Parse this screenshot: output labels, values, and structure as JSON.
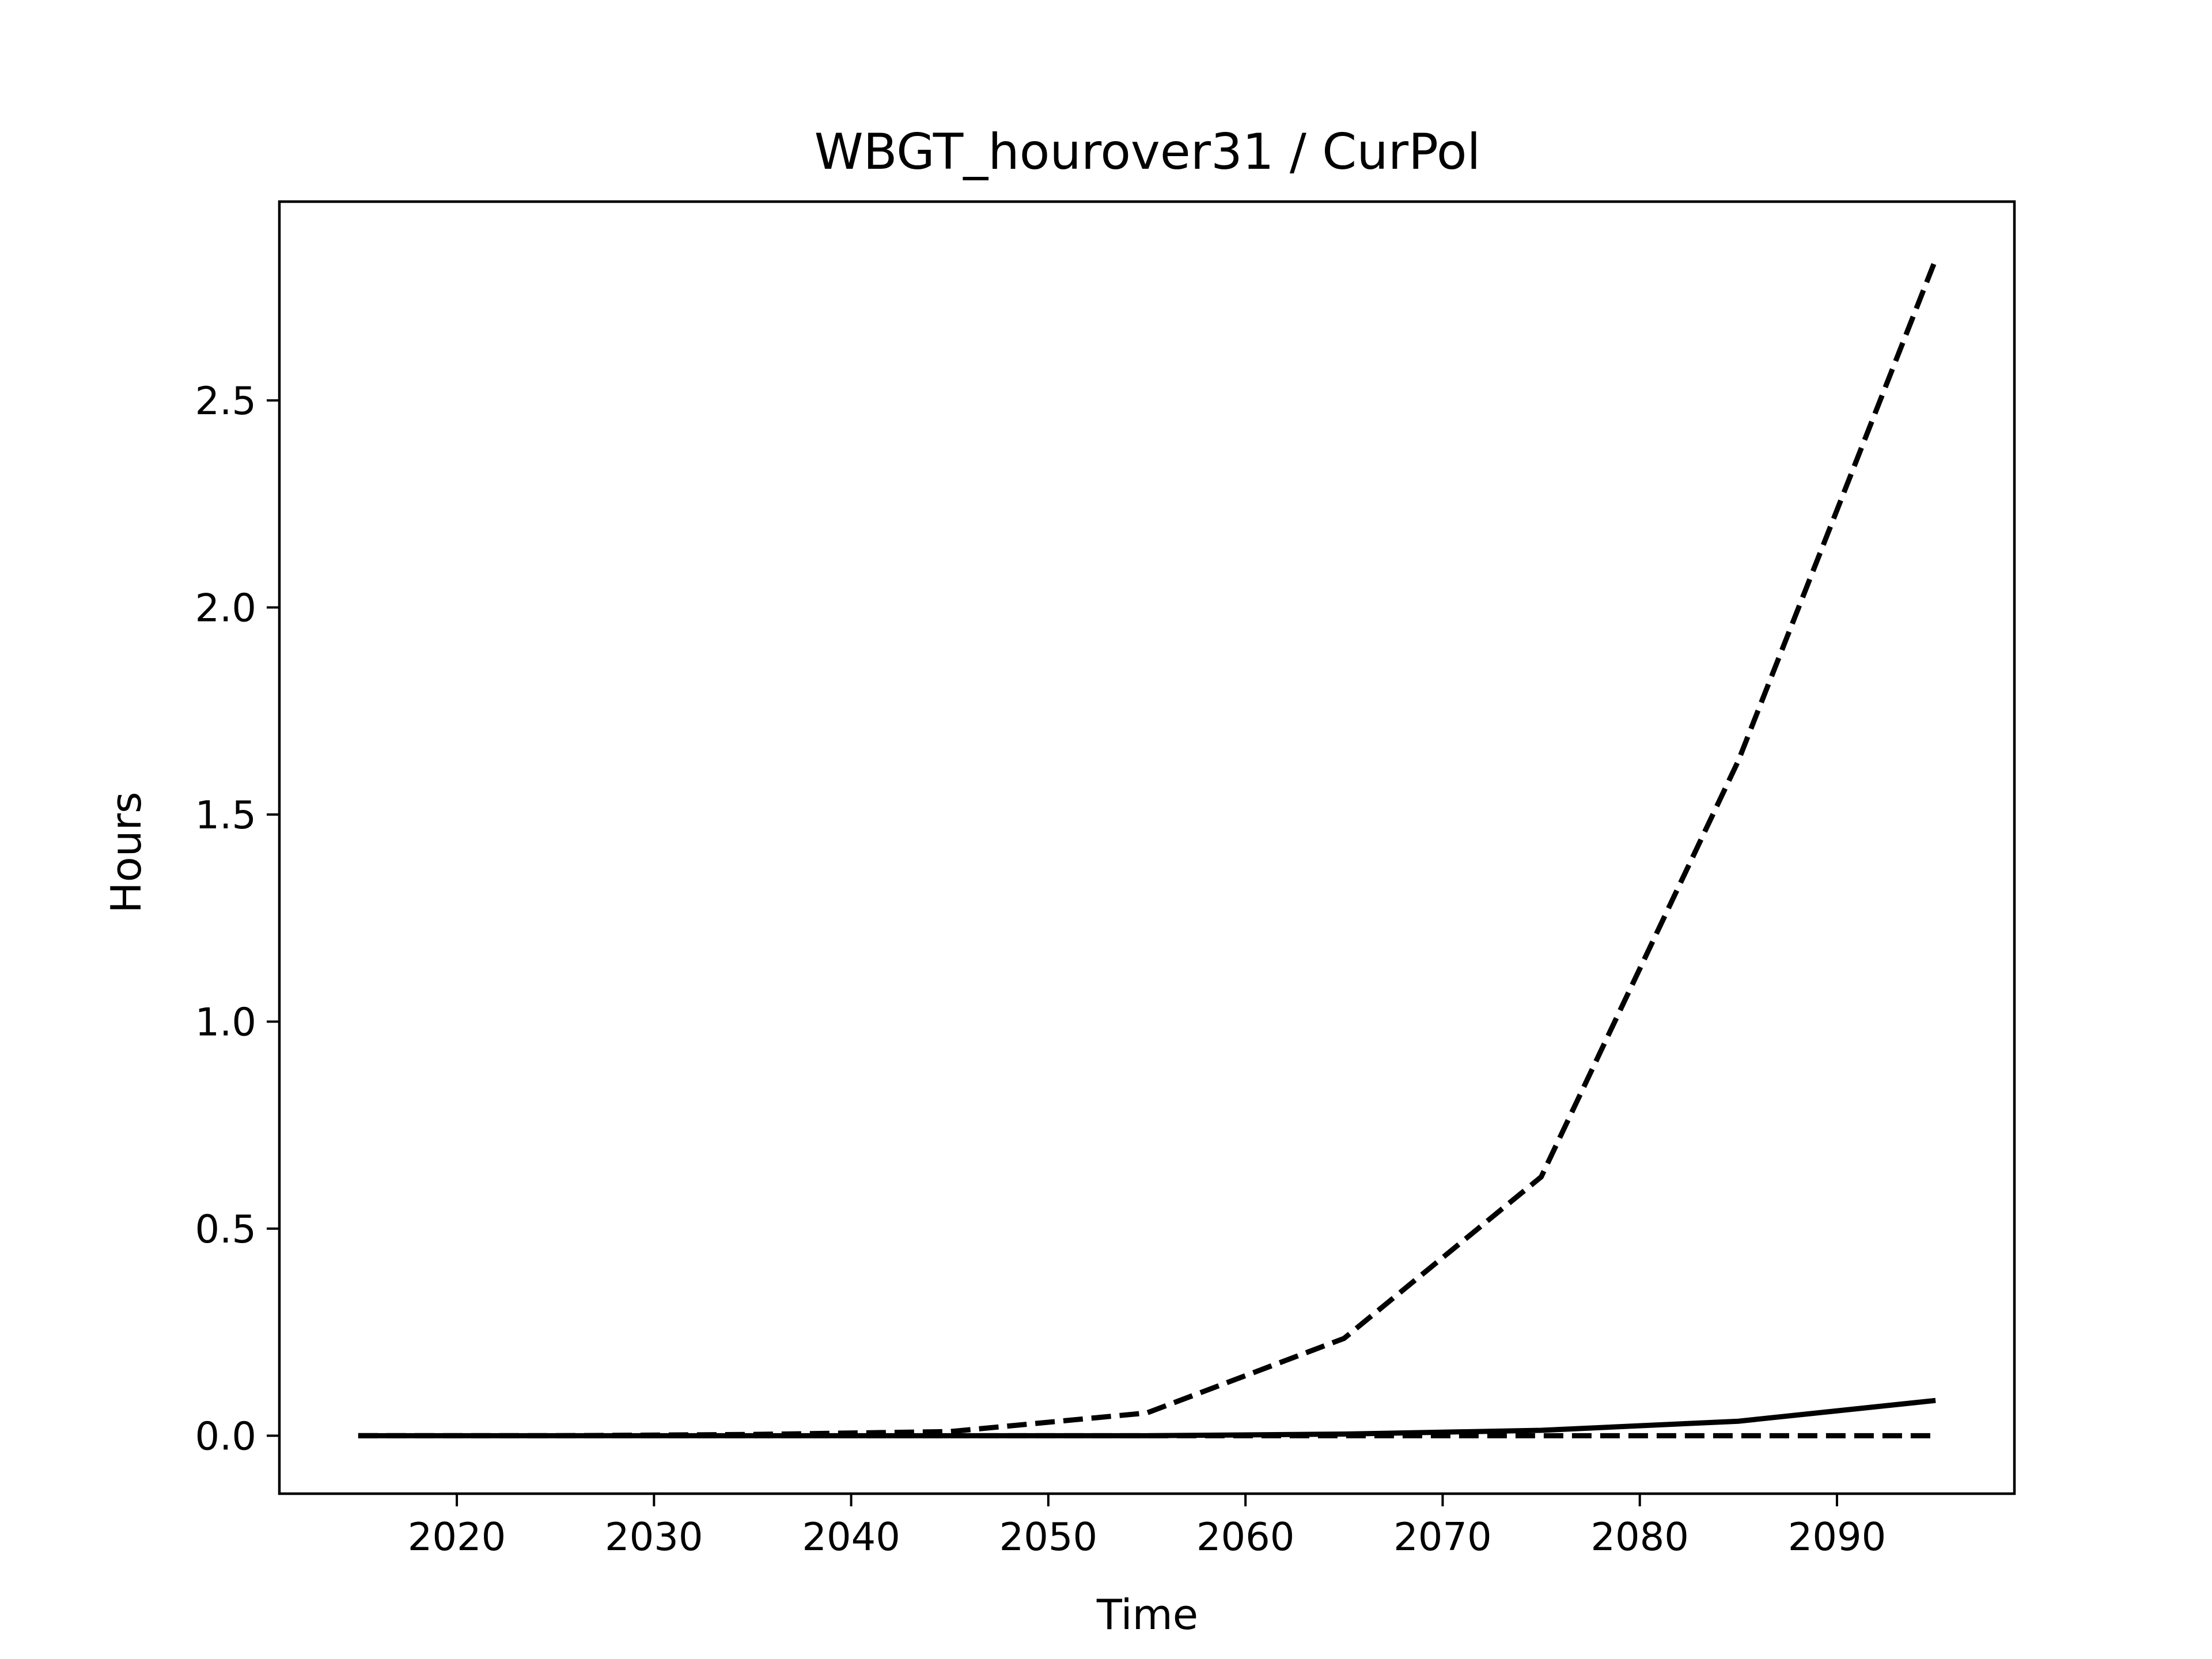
{
  "chart_data": {
    "type": "line",
    "title": "WBGT_hourover31 / CurPol",
    "xlabel": "Time",
    "ylabel": "Hours",
    "xlim": [
      2011,
      2099
    ],
    "ylim": [
      -0.14,
      2.98
    ],
    "xticks": [
      2020,
      2030,
      2040,
      2050,
      2060,
      2070,
      2080,
      2090
    ],
    "yticks": [
      0.0,
      0.5,
      1.0,
      1.5,
      2.0,
      2.5
    ],
    "grid": false,
    "legend": "none",
    "x": [
      2015,
      2025,
      2035,
      2045,
      2055,
      2065,
      2075,
      2085,
      2095
    ],
    "series": [
      {
        "style": "dashed",
        "color": "#000000",
        "values": [
          0.0,
          0.0,
          0.003,
          0.01,
          0.055,
          0.235,
          0.625,
          1.63,
          2.84
        ]
      },
      {
        "style": "solid",
        "color": "#000000",
        "values": [
          0.0,
          0.0,
          0.0,
          0.0,
          0.0,
          0.004,
          0.013,
          0.035,
          0.085
        ]
      },
      {
        "style": "dashed",
        "color": "#000000",
        "values": [
          0.0,
          0.0,
          0.0,
          0.0,
          0.0,
          0.0,
          0.0,
          0.0,
          0.0
        ]
      }
    ]
  }
}
